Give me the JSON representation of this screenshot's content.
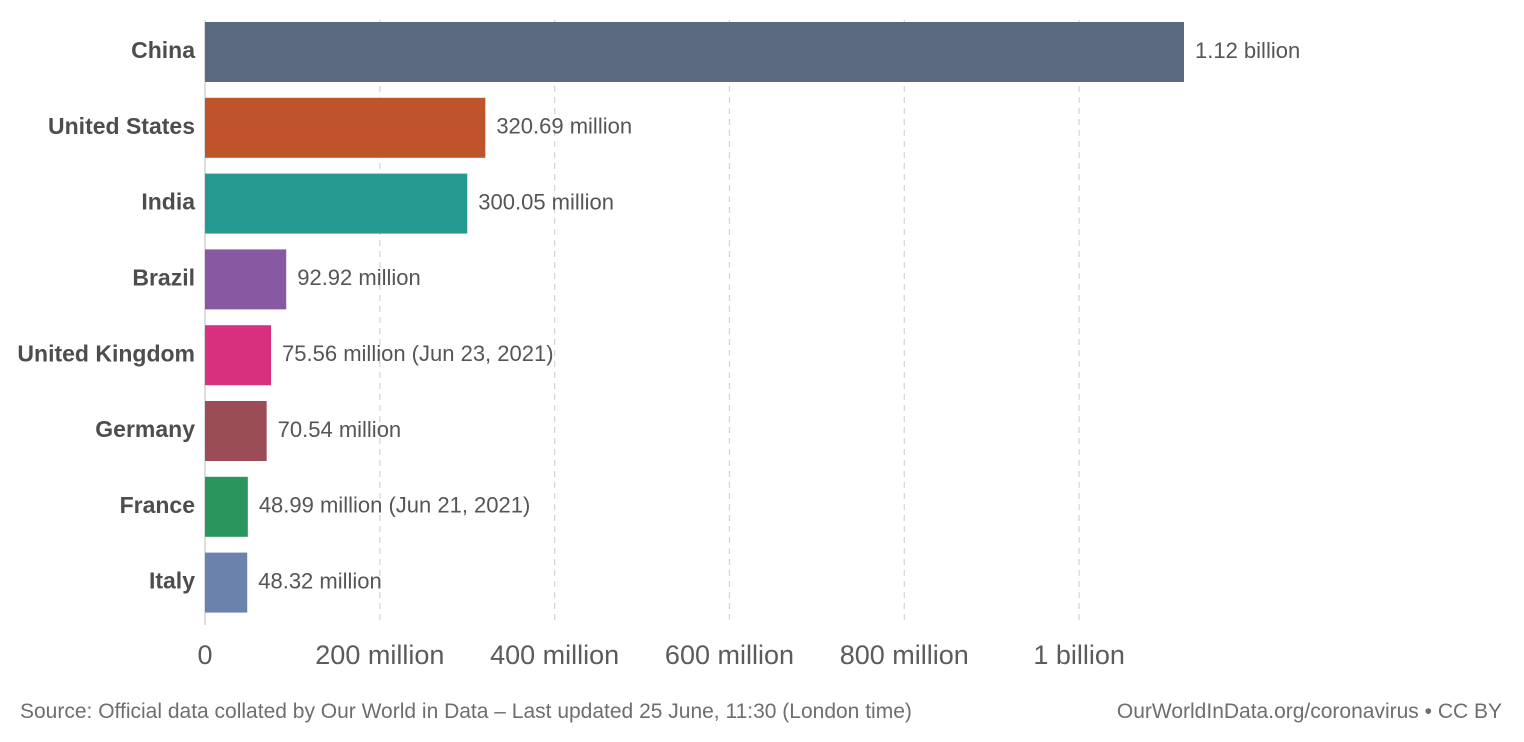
{
  "chart_data": {
    "type": "bar",
    "orientation": "horizontal",
    "categories": [
      "China",
      "United States",
      "India",
      "Brazil",
      "United Kingdom",
      "Germany",
      "France",
      "Italy"
    ],
    "values": [
      1120000000,
      320690000,
      300050000,
      92920000,
      75560000,
      70540000,
      48990000,
      48320000
    ],
    "value_labels": [
      "1.12 billion",
      "320.69 million",
      "300.05 million",
      "92.92 million",
      "75.56 million (Jun 23, 2021)",
      "70.54 million",
      "48.99 million (Jun 21, 2021)",
      "48.32 million"
    ],
    "colors": [
      "#5b6a80",
      "#bf542c",
      "#259a91",
      "#8759a2",
      "#d8307e",
      "#9a4d55",
      "#2a965d",
      "#6a82ac"
    ],
    "xlim": [
      0,
      1120000000
    ],
    "xticks": [
      0,
      200000000,
      400000000,
      600000000,
      800000000,
      1000000000
    ],
    "xtick_labels": [
      "0",
      "200 million",
      "400 million",
      "600 million",
      "800 million",
      "1 billion"
    ],
    "grid": "vertical-dashed",
    "title": "",
    "xlabel": "",
    "ylabel": ""
  },
  "footer": {
    "source": "Source: Official data collated by Our World in Data – Last updated 25 June, 11:30 (London time)",
    "credit": "OurWorldInData.org/coronavirus • CC BY"
  }
}
